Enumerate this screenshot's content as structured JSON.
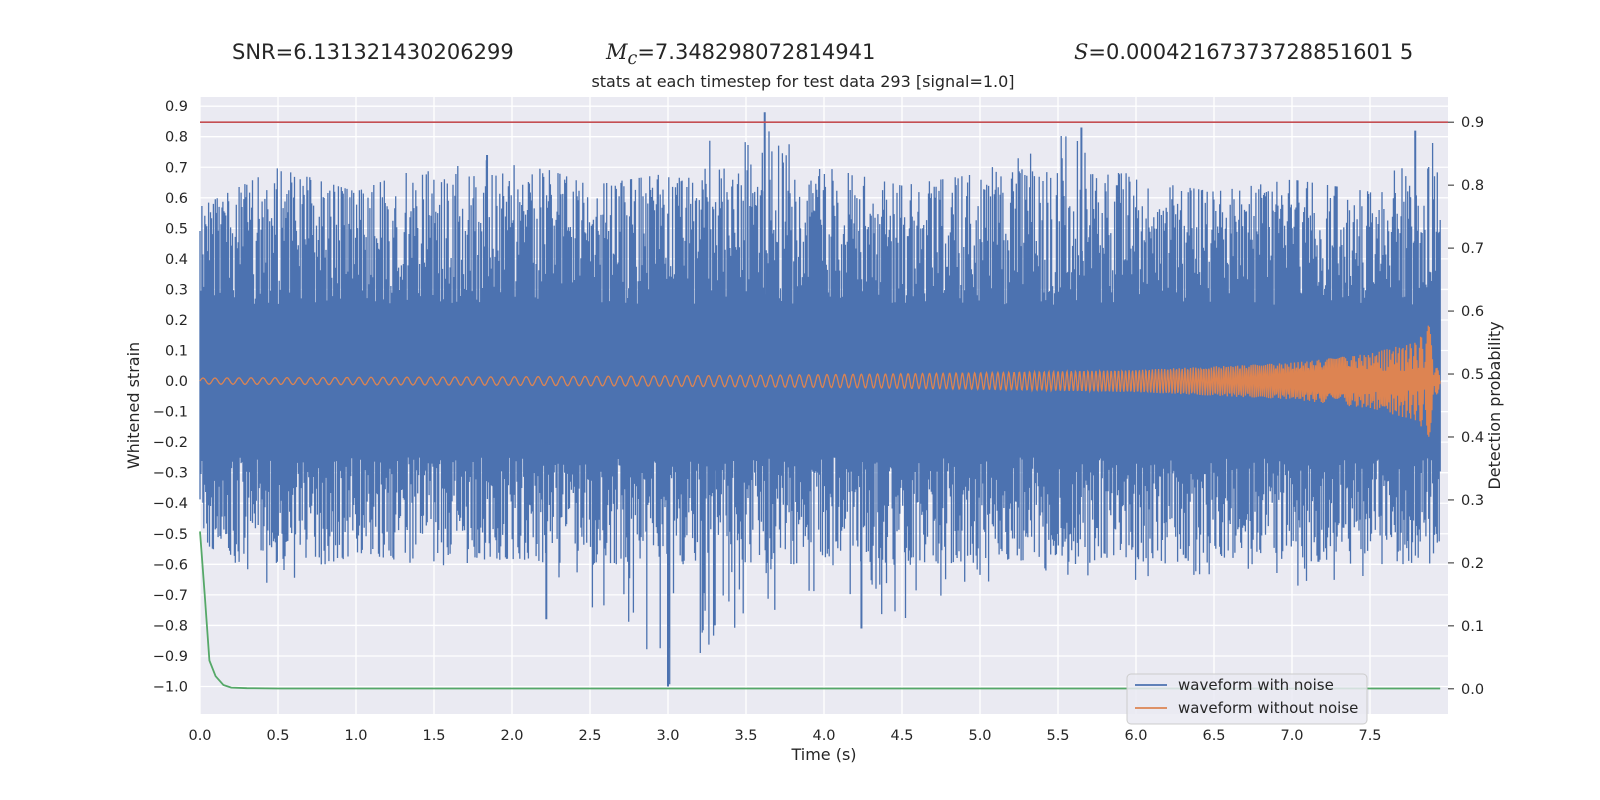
{
  "header": {
    "snr_text": "SNR=6.131321430206299",
    "mc_symbol": "M",
    "mc_sub": "c",
    "mc_value": "=7.348298072814941",
    "s_symbol": "S",
    "s_value": "=0.00042167373728851601 5"
  },
  "chart_data": {
    "type": "line",
    "title": "stats at each timestep for test data 293 [signal=1.0]",
    "xlabel": "Time (s)",
    "ylabel": "Whitened strain",
    "y2label": "Detection probability",
    "xlim": [
      0.0,
      8.0
    ],
    "ylim": [
      -1.09,
      0.93
    ],
    "y2lim": [
      -0.04,
      0.94
    ],
    "xticks": [
      "0.0",
      "0.5",
      "1.0",
      "1.5",
      "2.0",
      "2.5",
      "3.0",
      "3.5",
      "4.0",
      "4.5",
      "5.0",
      "5.5",
      "6.0",
      "6.5",
      "7.0",
      "7.5"
    ],
    "yticks": [
      "0.9",
      "0.8",
      "0.7",
      "0.6",
      "0.5",
      "0.4",
      "0.3",
      "0.2",
      "0.1",
      "0.0",
      "−0.1",
      "−0.2",
      "−0.3",
      "−0.4",
      "−0.5",
      "−0.6",
      "−0.7",
      "−0.8",
      "−0.9",
      "−1.0"
    ],
    "y2ticks": [
      "0.0",
      "0.1",
      "0.2",
      "0.3",
      "0.4",
      "0.5",
      "0.6",
      "0.7",
      "0.8",
      "0.9"
    ],
    "grid": true,
    "legend_position": "lower-right",
    "colors": {
      "noisy": "#4c72b0",
      "clean": "#dd8452",
      "prob": "#55a868",
      "threshold": "#c44e52",
      "background": "#eaeaf2"
    },
    "threshold": 0.9,
    "series": [
      {
        "name": "waveform with noise",
        "axis": "left",
        "envelope_x": [
          0.0,
          0.5,
          1.0,
          1.5,
          2.0,
          2.5,
          3.0,
          3.5,
          4.0,
          4.5,
          5.0,
          5.5,
          6.0,
          6.5,
          7.0,
          7.5,
          7.95
        ],
        "envelope_max": [
          0.57,
          0.7,
          0.62,
          0.72,
          0.74,
          0.64,
          0.68,
          0.88,
          0.7,
          0.64,
          0.68,
          0.83,
          0.66,
          0.62,
          0.66,
          0.62,
          0.82
        ],
        "envelope_min": [
          -0.52,
          -0.7,
          -0.56,
          -0.61,
          -0.58,
          -0.78,
          -1.0,
          -0.8,
          -0.68,
          -0.81,
          -0.66,
          -0.63,
          -0.67,
          -0.63,
          -0.68,
          -0.64,
          -0.59
        ],
        "peaks": [
          {
            "x": 3.0,
            "y": -1.0
          },
          {
            "x": 3.62,
            "y": 0.88
          },
          {
            "x": 5.65,
            "y": 0.83
          },
          {
            "x": 7.79,
            "y": 0.82
          },
          {
            "x": 1.84,
            "y": 0.74
          },
          {
            "x": 2.22,
            "y": -0.78
          },
          {
            "x": 3.3,
            "y": -0.8
          },
          {
            "x": 4.24,
            "y": -0.81
          }
        ]
      },
      {
        "name": "waveform without noise",
        "axis": "left",
        "x": [
          0.0,
          1.0,
          2.0,
          3.0,
          4.0,
          5.0,
          6.0,
          7.0,
          7.5,
          7.8,
          7.9,
          7.95
        ],
        "amplitude": [
          0.01,
          0.012,
          0.014,
          0.017,
          0.021,
          0.027,
          0.036,
          0.06,
          0.09,
          0.13,
          0.2,
          0.0
        ]
      },
      {
        "name": "",
        "axis": "right",
        "x": [
          0.0,
          0.03,
          0.06,
          0.1,
          0.15,
          0.2,
          0.3,
          0.5,
          7.95
        ],
        "y": [
          0.25,
          0.15,
          0.045,
          0.02,
          0.006,
          0.002,
          0.001,
          0.0005,
          0.0005
        ]
      }
    ]
  }
}
